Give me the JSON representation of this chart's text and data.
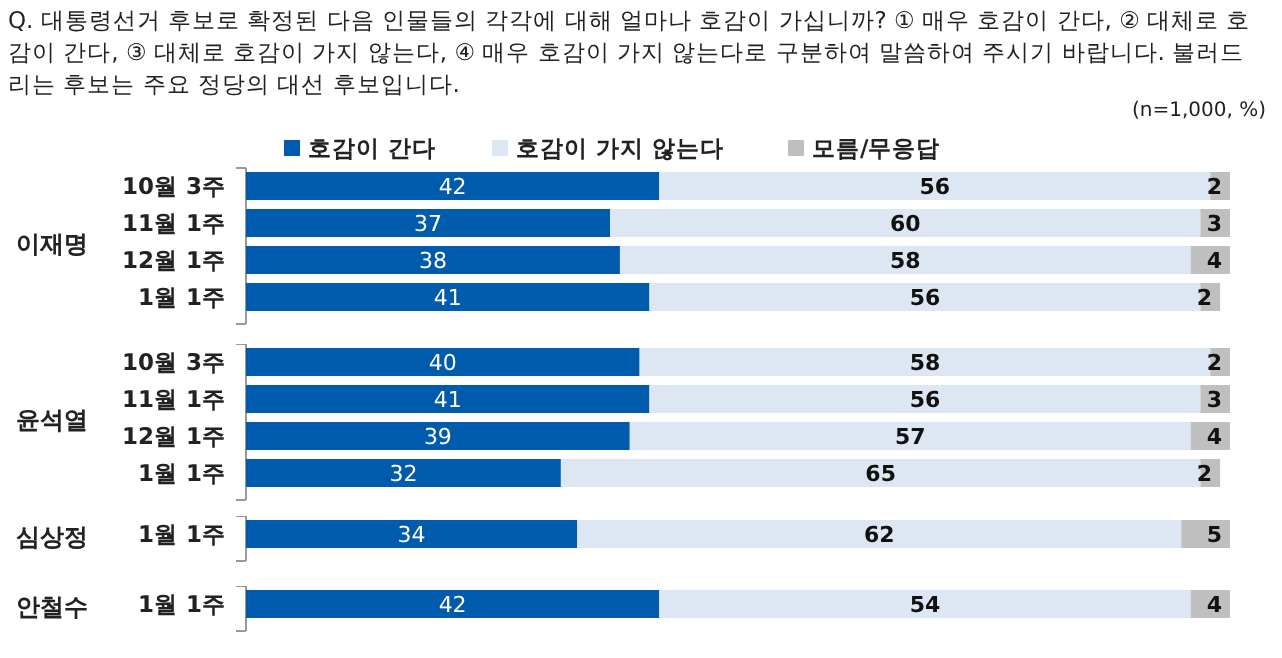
{
  "chart_data": [
    {
      "type": "bar",
      "orientation": "horizontal",
      "stacked": true,
      "data_labels": true,
      "legend": "top",
      "title": "Q. 대통령선거 후보로 확정된 다음 인물들의 각각에 대해 얼마나 호감이 가십니까? ① 매우 호감이 간다, ② 대체로 호감이 간다, ③ 대체로 호감이 가지 않는다, ④ 매우 호감이 가지 않는다로 구분하여 말씀하여 주시기 바랍니다. 불러드리는 후보는 주요 정당의 대선 후보입니다.",
      "subtitle": "(n=1,000, %)",
      "ylabel": "이재명",
      "categories": [
        "10월 3주",
        "11월 1주",
        "12월 1주",
        "1월 1주"
      ],
      "series": [
        {
          "name": "호감이 간다",
          "color": "#005bac",
          "values": [
            42,
            37,
            38,
            41
          ]
        },
        {
          "name": "호감이 가지 않는다",
          "color": "#dde7f3",
          "values": [
            56,
            60,
            58,
            56
          ]
        },
        {
          "name": "모름/무응답",
          "color": "#bfbfbf",
          "values": [
            2,
            3,
            4,
            2
          ]
        }
      ]
    },
    {
      "type": "bar",
      "orientation": "horizontal",
      "stacked": true,
      "data_labels": true,
      "ylabel": "윤석열",
      "categories": [
        "10월 3주",
        "11월 1주",
        "12월 1주",
        "1월 1주"
      ],
      "series": [
        {
          "color": "#005bac",
          "values": [
            40,
            41,
            39,
            32
          ]
        },
        {
          "color": "#dde7f3",
          "values": [
            58,
            56,
            57,
            65
          ]
        },
        {
          "color": "#bfbfbf",
          "values": [
            2,
            3,
            4,
            2
          ]
        }
      ]
    },
    {
      "type": "bar",
      "orientation": "horizontal",
      "stacked": true,
      "data_labels": true,
      "ylabel": "심상정",
      "categories": [
        "1월 1주"
      ],
      "series": [
        {
          "color": "#005bac",
          "values": [
            34
          ]
        },
        {
          "color": "#dde7f3",
          "values": [
            62
          ]
        },
        {
          "color": "#bfbfbf",
          "values": [
            5
          ]
        }
      ]
    },
    {
      "type": "bar",
      "orientation": "horizontal",
      "stacked": true,
      "data_labels": true,
      "ylabel": "안철수",
      "categories": [
        "1월 1주"
      ],
      "series": [
        {
          "color": "#005bac",
          "values": [
            42
          ]
        },
        {
          "color": "#dde7f3",
          "values": [
            54
          ]
        },
        {
          "color": "#bfbfbf",
          "values": [
            4
          ]
        }
      ]
    }
  ]
}
